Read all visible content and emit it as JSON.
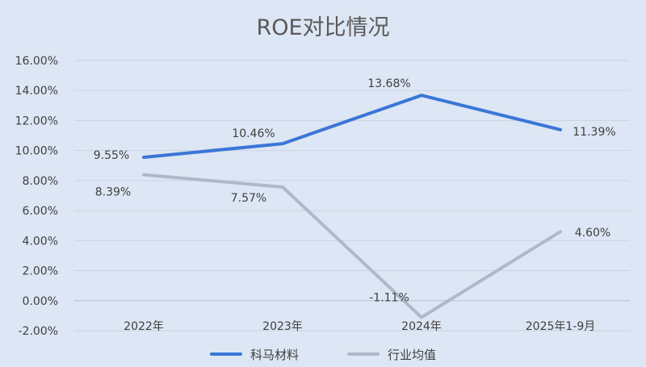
{
  "chart_data": {
    "type": "line",
    "title": "ROE对比情况",
    "categories": [
      "2022年",
      "2023年",
      "2024年",
      "2025年1-9月"
    ],
    "ylim": [
      -2,
      16
    ],
    "ytick_step": 2,
    "ytick_format": "percent_2dp",
    "grid": true,
    "legend_position": "bottom",
    "series": [
      {
        "name": "科马材料",
        "values": [
          9.55,
          10.46,
          13.68,
          11.39
        ],
        "labels": [
          "9.55%",
          "10.46%",
          "13.68%",
          "11.39%"
        ],
        "color": "#3a76d6"
      },
      {
        "name": "行业均值",
        "values": [
          8.39,
          7.57,
          -1.11,
          4.6
        ],
        "labels": [
          "8.39%",
          "7.57%",
          "-1.11%",
          "4.60%"
        ],
        "color": "#adb9ca"
      }
    ]
  }
}
